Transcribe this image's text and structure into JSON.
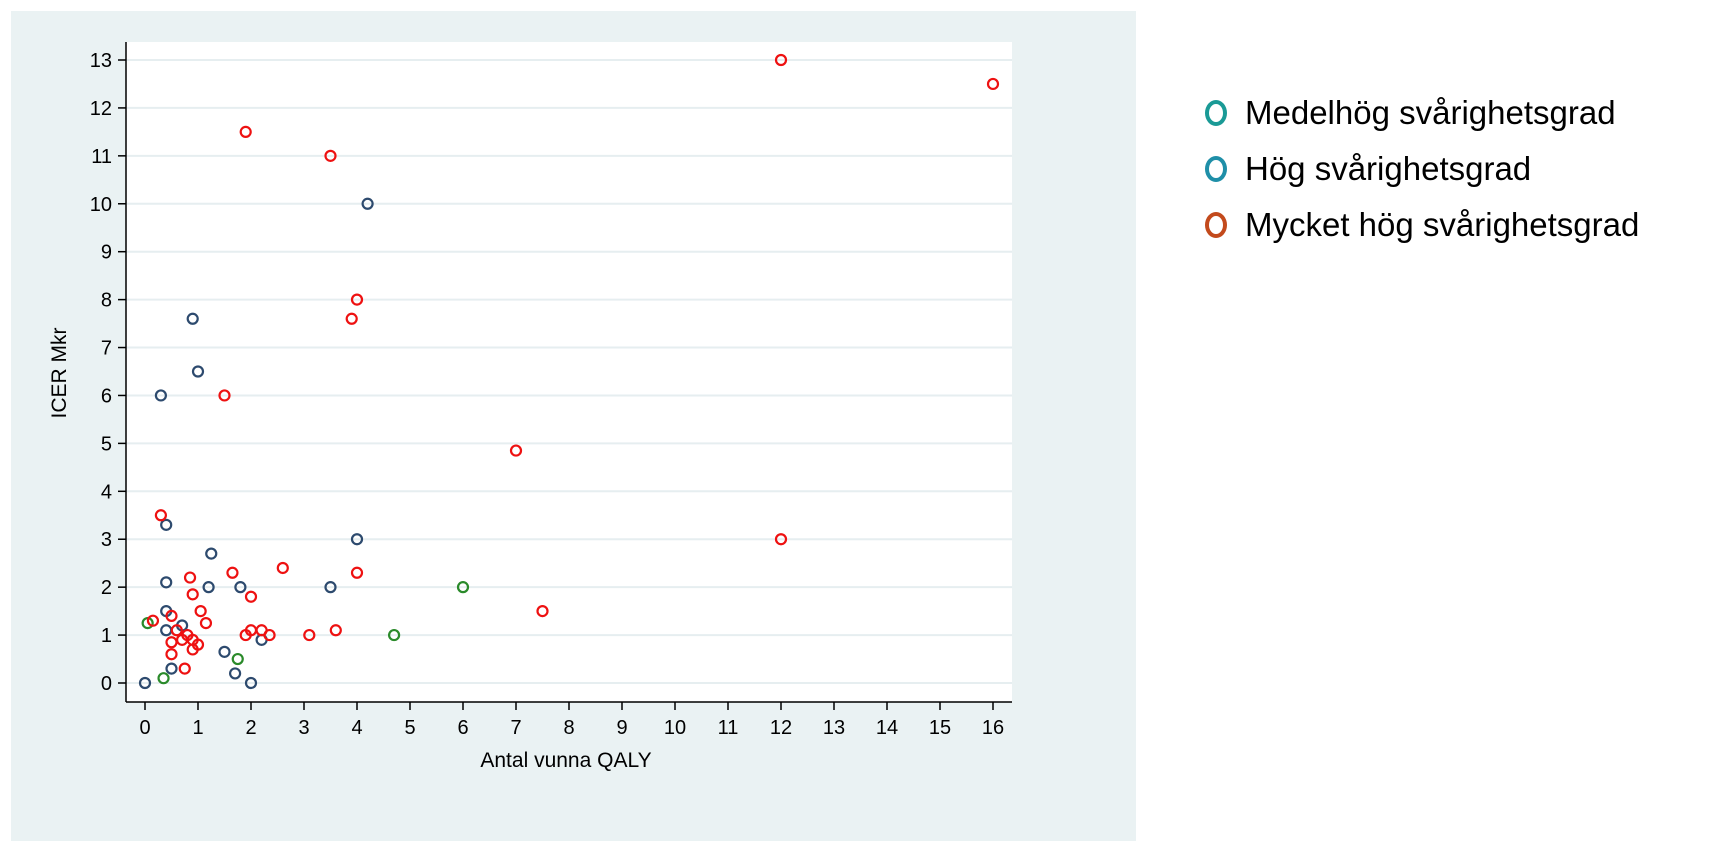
{
  "chart_data": {
    "type": "scatter",
    "title": "",
    "xlabel": "Antal vunna QALY",
    "ylabel": "ICER Mkr",
    "xlim": [
      0,
      16
    ],
    "ylim": [
      0,
      13
    ],
    "x_ticks": [
      0,
      1,
      2,
      3,
      4,
      5,
      6,
      7,
      8,
      9,
      10,
      11,
      12,
      13,
      14,
      15,
      16
    ],
    "y_ticks": [
      0,
      1,
      2,
      3,
      4,
      5,
      6,
      7,
      8,
      9,
      10,
      11,
      12,
      13
    ],
    "grid": "horizontal",
    "legend_position": "right",
    "series": [
      {
        "color": "#2a8a2a",
        "points": [
          [
            0.05,
            1.25
          ],
          [
            0.35,
            0.1
          ],
          [
            1.75,
            0.5
          ],
          [
            4.7,
            1.0
          ],
          [
            6.0,
            2.0
          ]
        ]
      },
      {
        "color": "#2d4a6e",
        "points": [
          [
            0.0,
            0.0
          ],
          [
            0.3,
            6.0
          ],
          [
            0.4,
            1.5
          ],
          [
            0.4,
            2.1
          ],
          [
            0.4,
            3.3
          ],
          [
            0.4,
            1.1
          ],
          [
            0.5,
            0.3
          ],
          [
            0.7,
            1.2
          ],
          [
            0.9,
            7.6
          ],
          [
            1.0,
            6.5
          ],
          [
            1.2,
            2.0
          ],
          [
            1.25,
            2.7
          ],
          [
            1.5,
            0.65
          ],
          [
            1.7,
            0.2
          ],
          [
            1.8,
            2.0
          ],
          [
            2.0,
            0.0
          ],
          [
            2.2,
            0.9
          ],
          [
            3.5,
            2.0
          ],
          [
            4.0,
            3.0
          ],
          [
            4.2,
            10.0
          ]
        ]
      },
      {
        "color": "#ee1111",
        "points": [
          [
            0.15,
            1.3
          ],
          [
            0.3,
            3.5
          ],
          [
            0.5,
            1.4
          ],
          [
            0.5,
            0.85
          ],
          [
            0.5,
            0.6
          ],
          [
            0.6,
            1.1
          ],
          [
            0.7,
            0.9
          ],
          [
            0.75,
            0.3
          ],
          [
            0.8,
            1.0
          ],
          [
            0.85,
            2.2
          ],
          [
            0.9,
            0.9
          ],
          [
            0.9,
            0.7
          ],
          [
            0.9,
            1.85
          ],
          [
            1.0,
            0.8
          ],
          [
            1.05,
            1.5
          ],
          [
            1.15,
            1.25
          ],
          [
            1.5,
            6.0
          ],
          [
            1.65,
            2.3
          ],
          [
            1.9,
            11.5
          ],
          [
            1.9,
            1.0
          ],
          [
            2.0,
            1.8
          ],
          [
            2.0,
            1.1
          ],
          [
            2.2,
            1.1
          ],
          [
            2.35,
            1.0
          ],
          [
            2.6,
            2.4
          ],
          [
            3.1,
            1.0
          ],
          [
            3.5,
            11.0
          ],
          [
            3.6,
            1.1
          ],
          [
            3.9,
            7.6
          ],
          [
            4.0,
            8.0
          ],
          [
            4.0,
            2.3
          ],
          [
            7.0,
            4.85
          ],
          [
            7.5,
            1.5
          ],
          [
            12.0,
            13.0
          ],
          [
            12.0,
            3.0
          ],
          [
            16.0,
            12.5
          ]
        ]
      }
    ]
  },
  "legend": {
    "items": [
      {
        "label": "Medelhög svårighetsgrad",
        "color": "#1a9a96"
      },
      {
        "label": "Hög svårighetsgrad",
        "color": "#1f8fa8"
      },
      {
        "label": "Mycket hög svårighetsgrad",
        "color": "#c34a1c"
      }
    ]
  }
}
